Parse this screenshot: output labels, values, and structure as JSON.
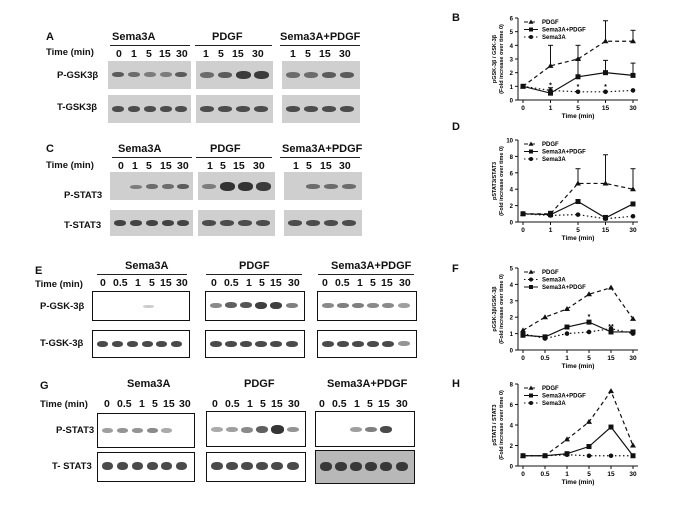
{
  "panels": {
    "A": {
      "label": "A",
      "time_label": "Time (min)",
      "groups": [
        "Sema3A",
        "PDGF",
        "Sema3A+PDGF"
      ],
      "lanes": [
        [
          "0",
          "1",
          "5",
          "15",
          "30"
        ],
        [
          "1",
          "5",
          "15",
          "30"
        ],
        [
          "1",
          "5",
          "15",
          "30"
        ]
      ],
      "rows": [
        "P-GSK3β",
        "T-GSK3β"
      ]
    },
    "C": {
      "label": "C",
      "time_label": "Time (min)",
      "groups": [
        "Sema3A",
        "PDGF",
        "Sema3A+PDGF"
      ],
      "lanes": [
        [
          "0",
          "1",
          "5",
          "15",
          "30"
        ],
        [
          "1",
          "5",
          "15",
          "30"
        ],
        [
          "1",
          "5",
          "15",
          "30"
        ]
      ],
      "rows": [
        "P-STAT3",
        "T-STAT3"
      ]
    },
    "E": {
      "label": "E",
      "time_label": "Time (min)",
      "groups": [
        "Sema3A",
        "PDGF",
        "Sema3A+PDGF"
      ],
      "lanes": [
        [
          "0",
          "0.5",
          "1",
          "5",
          "15",
          "30"
        ],
        [
          "0",
          "0.5",
          "1",
          "5",
          "15",
          "30"
        ],
        [
          "0",
          "0.5",
          "1",
          "5",
          "15",
          "30"
        ]
      ],
      "rows": [
        "P-GSK-3β",
        "T-GSK-3β"
      ]
    },
    "G": {
      "label": "G",
      "time_label": "Time (min)",
      "groups": [
        "Sema3A",
        "PDGF",
        "Sema3A+PDGF"
      ],
      "lanes": [
        [
          "0",
          "0.5",
          "1",
          "5",
          "15",
          "30"
        ],
        [
          "0",
          "0.5",
          "1",
          "5",
          "15",
          "30"
        ],
        [
          "0",
          "0.5",
          "1",
          "5",
          "15",
          "30"
        ]
      ],
      "rows": [
        "P-STAT3",
        "T- STAT3"
      ]
    }
  },
  "chart_data": [
    {
      "panel": "B",
      "type": "line",
      "x": [
        "0",
        "1",
        "5",
        "15",
        "30"
      ],
      "xlabel": "Time (min)",
      "ylabel": "pGSK-3β / GSK-3β",
      "ylabel2": "(Fold increase over time 0)",
      "ylim": [
        0,
        6
      ],
      "yticks": [
        "0",
        "1",
        "2",
        "3",
        "4",
        "5",
        "6"
      ],
      "legend": "top-left",
      "series": [
        {
          "name": "PDGF",
          "marker": "triangle",
          "dash": "dashed",
          "values": [
            1.0,
            2.5,
            3.0,
            4.3,
            4.3
          ],
          "err": [
            0,
            1.5,
            1.0,
            1.5,
            0.8
          ]
        },
        {
          "name": "Sema3A+PDGF",
          "marker": "square",
          "dash": "solid",
          "values": [
            1.0,
            0.5,
            1.7,
            2.0,
            1.8
          ],
          "err": [
            0,
            0.4,
            1.3,
            0.9,
            0.9
          ]
        },
        {
          "name": "Sema3A",
          "marker": "circle",
          "dash": "dotted",
          "values": [
            1.0,
            0.7,
            0.6,
            0.6,
            0.7
          ],
          "err": [
            0,
            0,
            0,
            0,
            0
          ]
        }
      ],
      "annotations": [
        {
          "x": "1",
          "text": "*"
        },
        {
          "x": "5",
          "text": "*"
        },
        {
          "x": "15",
          "text": "*"
        }
      ]
    },
    {
      "panel": "D",
      "type": "line",
      "x": [
        "0",
        "1",
        "5",
        "15",
        "30"
      ],
      "xlabel": "Time (min)",
      "ylabel": "pSTAT3/STAT3",
      "ylabel2": "(Fold increase over time 0)",
      "ylim": [
        0,
        10
      ],
      "yticks": [
        "0",
        "2",
        "4",
        "6",
        "8",
        "10"
      ],
      "legend": "top-left",
      "series": [
        {
          "name": "PDGF",
          "marker": "triangle",
          "dash": "dashed",
          "values": [
            1.0,
            1.0,
            4.7,
            4.7,
            4.0
          ],
          "err": [
            0,
            0.3,
            1.8,
            3.5,
            2.5
          ]
        },
        {
          "name": "Sema3A+PDGF",
          "marker": "square",
          "dash": "solid",
          "values": [
            1.0,
            0.9,
            2.5,
            0.5,
            2.2
          ],
          "err": [
            0,
            0.3,
            0,
            0.3,
            0
          ]
        },
        {
          "name": "Sema3A",
          "marker": "circle",
          "dash": "dotted",
          "values": [
            1.0,
            0.8,
            0.9,
            0.4,
            0.7
          ],
          "err": [
            0,
            0,
            0,
            0,
            0
          ]
        }
      ],
      "annotations": []
    },
    {
      "panel": "F",
      "type": "line",
      "x": [
        "0",
        "0.5",
        "1",
        "5",
        "15",
        "30"
      ],
      "xlabel": "Time (min)",
      "ylabel": "pGSK-3β/GSK-3β",
      "ylabel2": "(Fold increase over time 0)",
      "ylim": [
        0,
        5
      ],
      "yticks": [
        "0",
        "1",
        "2",
        "3",
        "4",
        "5"
      ],
      "legend": "top-left",
      "series": [
        {
          "name": "PDGF",
          "marker": "triangle",
          "dash": "dashed",
          "values": [
            1.2,
            2.0,
            2.5,
            3.4,
            3.8,
            1.9
          ],
          "err": [
            0,
            0,
            0,
            0,
            0,
            0
          ]
        },
        {
          "name": "Sema3A",
          "marker": "circle",
          "dash": "dotted",
          "values": [
            1.0,
            0.7,
            1.0,
            1.1,
            1.3,
            1.0
          ],
          "err": [
            0,
            0,
            0,
            0,
            0,
            0
          ]
        },
        {
          "name": "Sema3A+PDGF",
          "marker": "square",
          "dash": "solid",
          "values": [
            0.9,
            0.8,
            1.4,
            1.7,
            1.1,
            1.1
          ],
          "err": [
            0,
            0,
            0,
            0,
            0,
            0
          ]
        }
      ],
      "annotations": [
        {
          "x": "5",
          "text": "*"
        },
        {
          "x": "15",
          "text": "**"
        }
      ]
    },
    {
      "panel": "H",
      "type": "line",
      "x": [
        "0",
        "0.5",
        "1",
        "5",
        "15",
        "30"
      ],
      "xlabel": "Time (min)",
      "ylabel": "pSTAT3 / STAT3",
      "ylabel2": "(Fold increase over time 0)",
      "ylim": [
        0,
        8
      ],
      "yticks": [
        "0",
        "2",
        "4",
        "6",
        "8"
      ],
      "legend": "top-left",
      "series": [
        {
          "name": "PDGF",
          "marker": "triangle",
          "dash": "dashed",
          "values": [
            1.0,
            1.0,
            2.6,
            4.3,
            7.3,
            2.0
          ],
          "err": [
            0,
            0,
            0,
            0,
            0,
            0
          ]
        },
        {
          "name": "Sema3A+PDGF",
          "marker": "square",
          "dash": "solid",
          "values": [
            1.0,
            1.0,
            1.2,
            1.9,
            3.8,
            1.0
          ],
          "err": [
            0,
            0,
            0,
            0,
            0,
            0
          ]
        },
        {
          "name": "Sema3A",
          "marker": "circle",
          "dash": "dotted",
          "values": [
            1.0,
            1.0,
            1.1,
            1.0,
            1.0,
            1.0
          ],
          "err": [
            0,
            0,
            0,
            0,
            0,
            0
          ]
        }
      ],
      "annotations": []
    }
  ]
}
